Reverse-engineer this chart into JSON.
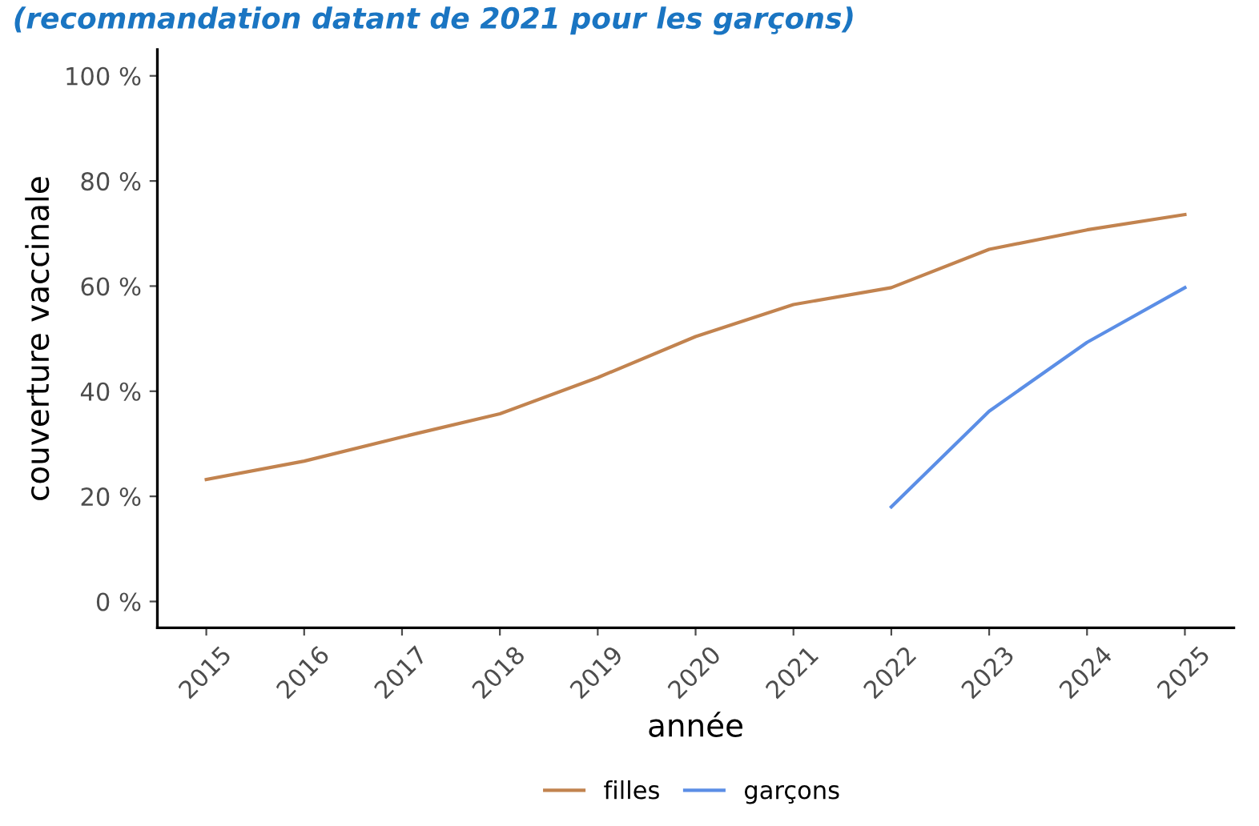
{
  "chart_data": {
    "type": "line",
    "title": "(recommandation datant de 2021 pour les garçons)",
    "xlabel": "année",
    "ylabel": "couverture vaccinale",
    "x": [
      2015,
      2016,
      2017,
      2018,
      2019,
      2020,
      2021,
      2022,
      2023,
      2024,
      2025
    ],
    "series": [
      {
        "name": "filles",
        "color": "#c2834f",
        "values": [
          23.2,
          26.7,
          31.3,
          35.7,
          42.6,
          50.4,
          56.5,
          59.7,
          67,
          70.7,
          73.6
        ]
      },
      {
        "name": "garçons",
        "color": "#5b8ee6",
        "values": [
          null,
          null,
          null,
          null,
          null,
          null,
          null,
          18,
          36.2,
          49.3,
          59.7
        ]
      }
    ],
    "xlim": [
      2014.5,
      2025.5
    ],
    "xticks": [
      2015,
      2016,
      2017,
      2018,
      2019,
      2020,
      2021,
      2022,
      2023,
      2024,
      2025
    ],
    "ylim": [
      -5,
      105
    ],
    "yticks": [
      {
        "value": 0,
        "label": "0 %"
      },
      {
        "value": 20,
        "label": "20 %"
      },
      {
        "value": 40,
        "label": "40 %"
      },
      {
        "value": 60,
        "label": "60 %"
      },
      {
        "value": 80,
        "label": "80 %"
      },
      {
        "value": 100,
        "label": "100 %"
      }
    ],
    "grid": false,
    "legend": "bottom",
    "marker": "none",
    "line_style": "solid"
  }
}
